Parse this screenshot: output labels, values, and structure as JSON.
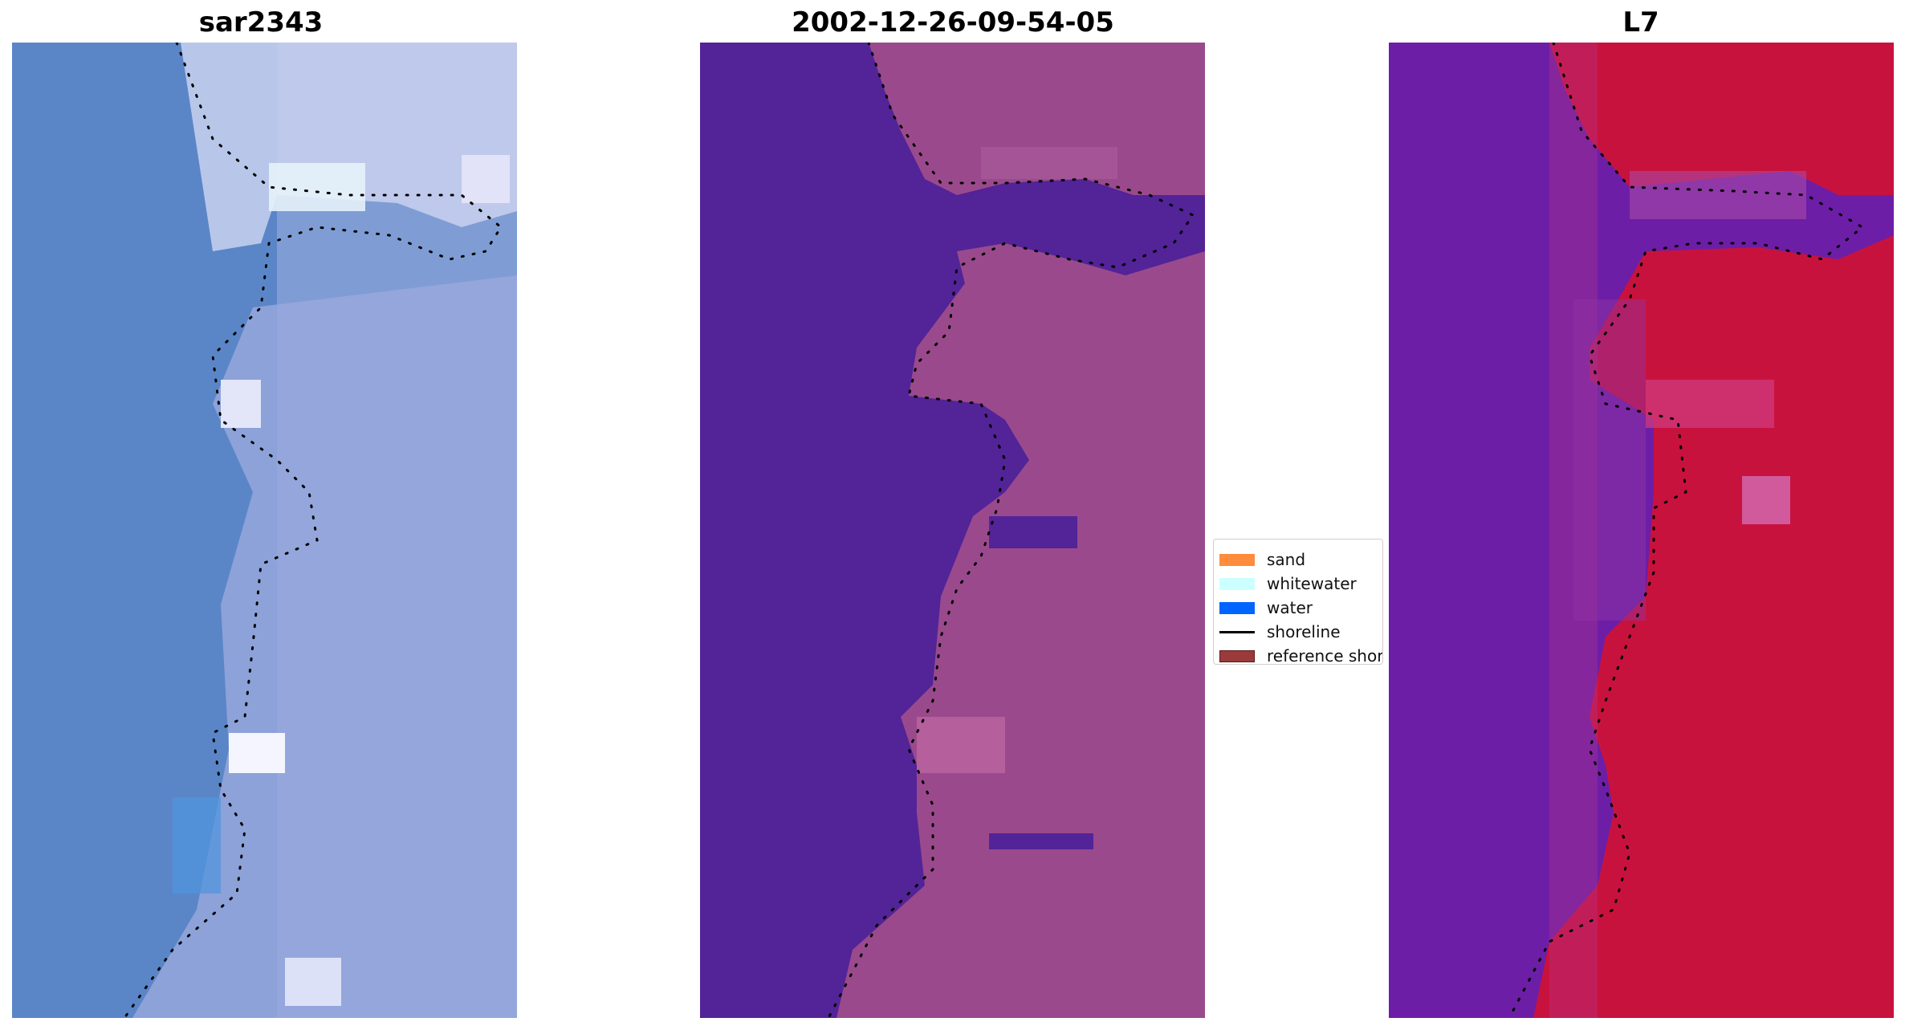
{
  "panels": [
    {
      "title": "sar2343",
      "scene": "rgb"
    },
    {
      "title": "2002-12-26-09-54-05",
      "scene": "classified"
    },
    {
      "title": "L7",
      "scene": "index"
    }
  ],
  "legend": {
    "items": [
      {
        "label": "sand",
        "color": "#ff8c3c",
        "kind": "patch"
      },
      {
        "label": "whitewater",
        "color": "#ccffff",
        "kind": "patch"
      },
      {
        "label": "water",
        "color": "#0064ff",
        "kind": "patch"
      },
      {
        "label": "shoreline",
        "color": "#000000",
        "kind": "line"
      },
      {
        "label": "reference shor",
        "color": "#9b3a3a",
        "kind": "patch"
      }
    ]
  },
  "colors": {
    "water_blue": "#5a86c8",
    "surf_white": "#dfe3f5",
    "classified_water": "#532398",
    "classified_land": "#9a4a8c",
    "index_low": "#6d1ea6",
    "index_high": "#c8123e",
    "shoreline_dots": "#000000"
  }
}
